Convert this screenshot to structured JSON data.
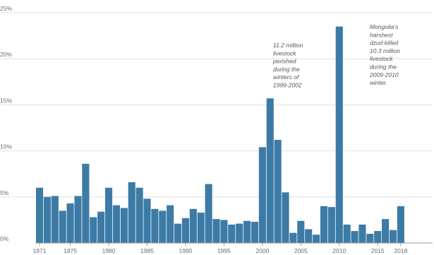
{
  "chart_data": {
    "type": "bar",
    "title": "",
    "xlabel": "",
    "ylabel": "",
    "ylim": [
      0,
      25
    ],
    "y_ticks": [
      "0%",
      "5%",
      "10%",
      "15%",
      "20%",
      "25%"
    ],
    "y_tick_values": [
      0,
      5,
      10,
      15,
      20,
      25
    ],
    "x_tick_labels": [
      "1971",
      "1975",
      "1980",
      "1985",
      "1990",
      "1995",
      "2000",
      "2005",
      "2010",
      "2015",
      "2018"
    ],
    "categories": [
      1971,
      1972,
      1973,
      1974,
      1975,
      1976,
      1977,
      1978,
      1979,
      1980,
      1981,
      1982,
      1983,
      1984,
      1985,
      1986,
      1987,
      1988,
      1989,
      1990,
      1991,
      1992,
      1993,
      1994,
      1995,
      1996,
      1997,
      1998,
      1999,
      2000,
      2001,
      2002,
      2003,
      2004,
      2005,
      2006,
      2007,
      2008,
      2009,
      2010,
      2011,
      2012,
      2013,
      2014,
      2015,
      2016,
      2017,
      2018
    ],
    "values": [
      6.0,
      5.0,
      5.1,
      3.5,
      4.3,
      5.1,
      8.6,
      2.8,
      3.4,
      6.0,
      4.1,
      3.8,
      6.6,
      6.0,
      4.8,
      3.7,
      3.5,
      4.1,
      2.1,
      2.7,
      3.7,
      3.3,
      6.4,
      2.6,
      2.5,
      2.0,
      2.1,
      2.4,
      2.3,
      10.4,
      15.7,
      11.2,
      5.5,
      1.1,
      2.4,
      1.5,
      0.9,
      4.0,
      3.9,
      23.5,
      2.0,
      1.3,
      2.0,
      1.0,
      1.3,
      2.6,
      1.4,
      4.0
    ],
    "grid": true,
    "bar_color": "#3c7ba6",
    "annotations": [
      {
        "x": 2000,
        "lines": [
          "11.2 million",
          "livestock",
          "perished",
          "during the",
          "winters of",
          "1999-2002"
        ]
      },
      {
        "x": 2010,
        "lines": [
          "Mongolia's",
          "harshest",
          "dzud killed",
          "10.3 million",
          "livestock",
          "during the",
          "2009-2010",
          "winter."
        ]
      }
    ]
  }
}
